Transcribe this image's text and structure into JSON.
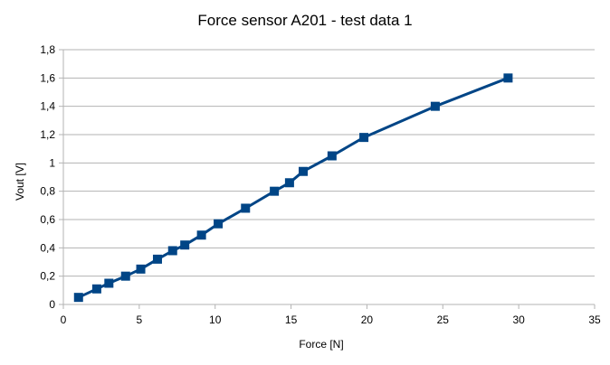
{
  "chart_data": {
    "type": "line",
    "title": "Force sensor A201 - test data 1",
    "xlabel": "Force [N]",
    "ylabel": "Vout  [V]",
    "xlim": [
      0,
      35
    ],
    "ylim": [
      0,
      1.8
    ],
    "x_ticks": [
      "0",
      "5",
      "10",
      "15",
      "20",
      "25",
      "30",
      "35"
    ],
    "y_ticks": [
      "0",
      "0,2",
      "0,4",
      "0,6",
      "0,8",
      "1",
      "1,2",
      "1,4",
      "1,6",
      "1,8"
    ],
    "grid": "horizontal",
    "series": [
      {
        "color": "#004586",
        "marker": "square",
        "points": [
          {
            "x": 1.0,
            "y": 0.05
          },
          {
            "x": 2.2,
            "y": 0.11
          },
          {
            "x": 3.0,
            "y": 0.15
          },
          {
            "x": 4.1,
            "y": 0.2
          },
          {
            "x": 5.1,
            "y": 0.25
          },
          {
            "x": 6.2,
            "y": 0.32
          },
          {
            "x": 7.2,
            "y": 0.38
          },
          {
            "x": 8.0,
            "y": 0.42
          },
          {
            "x": 9.1,
            "y": 0.49
          },
          {
            "x": 10.2,
            "y": 0.57
          },
          {
            "x": 12.0,
            "y": 0.68
          },
          {
            "x": 13.9,
            "y": 0.8
          },
          {
            "x": 14.9,
            "y": 0.86
          },
          {
            "x": 15.8,
            "y": 0.94
          },
          {
            "x": 17.7,
            "y": 1.05
          },
          {
            "x": 19.8,
            "y": 1.18
          },
          {
            "x": 24.5,
            "y": 1.4
          },
          {
            "x": 29.3,
            "y": 1.6
          }
        ]
      }
    ]
  }
}
